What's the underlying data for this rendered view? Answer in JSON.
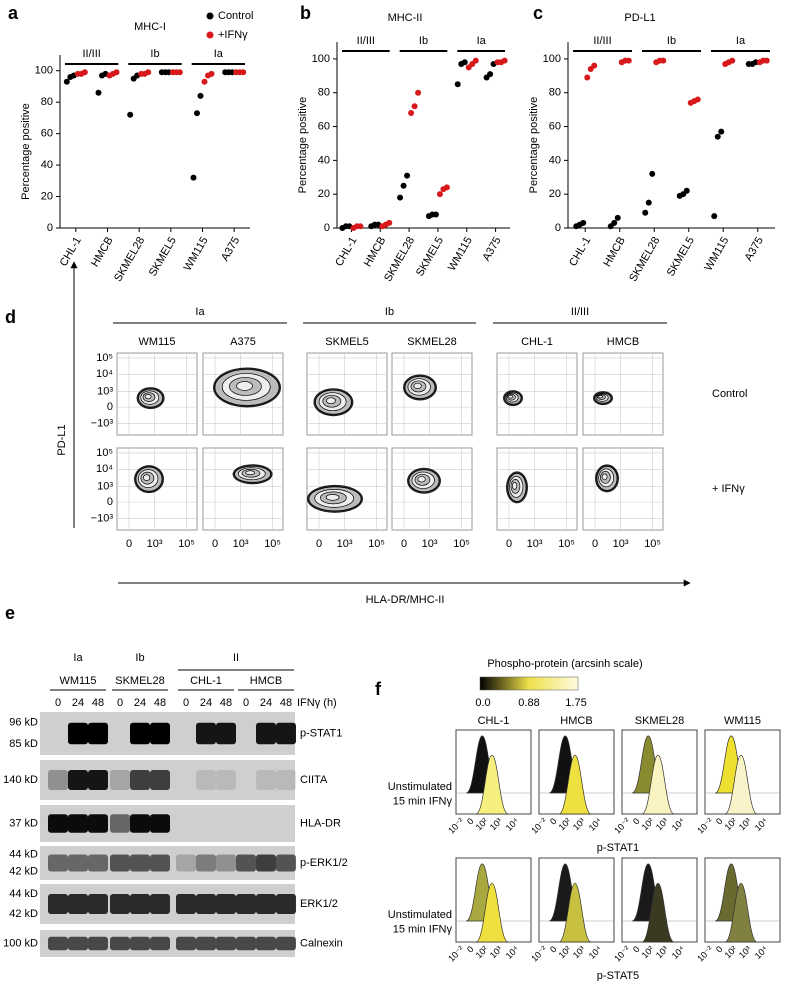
{
  "chart_data": [
    {
      "type": "dot",
      "panel": "a",
      "title": "MHC-I",
      "y_label": "Percentage positive",
      "categories": [
        "CHL-1",
        "HMCB",
        "SKMEL28",
        "SKMEL5",
        "WM115",
        "A375"
      ],
      "groups": [
        "II/III",
        "Ib",
        "Ia"
      ],
      "series": [
        {
          "name": "Control",
          "color": "#000000",
          "values": [
            [
              93,
              96,
              97
            ],
            [
              86,
              97,
              98
            ],
            [
              72,
              95,
              97
            ],
            [
              99,
              99,
              99
            ],
            [
              32,
              73,
              84
            ],
            [
              99,
              99,
              99
            ]
          ]
        },
        {
          "name": "+IFNγ",
          "color": "#d7191c",
          "values": [
            [
              98,
              98,
              99
            ],
            [
              97,
              98,
              99
            ],
            [
              98,
              98,
              99
            ],
            [
              99,
              99,
              99
            ],
            [
              93,
              97,
              98
            ],
            [
              99,
              99,
              99
            ]
          ]
        }
      ],
      "ylim": [
        0,
        110
      ],
      "yticks": [
        0,
        20,
        40,
        60,
        80,
        100
      ],
      "legend": true
    },
    {
      "type": "dot",
      "panel": "b",
      "title": "MHC-II",
      "y_label": "Percentage positive",
      "categories": [
        "CHL-1",
        "HMCB",
        "SKMEL28",
        "SKMEL5",
        "WM115",
        "A375"
      ],
      "groups": [
        "II/III",
        "Ib",
        "Ia"
      ],
      "series": [
        {
          "color": "#000000",
          "values": [
            [
              0,
              1,
              1
            ],
            [
              1,
              2,
              2
            ],
            [
              18,
              25,
              31
            ],
            [
              7,
              8,
              8
            ],
            [
              85,
              97,
              98
            ],
            [
              89,
              91,
              97
            ]
          ]
        },
        {
          "color": "#d7191c",
          "values": [
            [
              0,
              1,
              1
            ],
            [
              1,
              2,
              3
            ],
            [
              68,
              72,
              80
            ],
            [
              20,
              23,
              24
            ],
            [
              95,
              97,
              99
            ],
            [
              98,
              98,
              99
            ]
          ]
        }
      ],
      "ylim": [
        0,
        110
      ],
      "yticks": [
        0,
        20,
        40,
        60,
        80,
        100
      ],
      "legend": false
    },
    {
      "type": "dot",
      "panel": "c",
      "title": "PD-L1",
      "y_label": "Percentage positive",
      "categories": [
        "CHL-1",
        "HMCB",
        "SKMEL28",
        "SKMEL5",
        "WM115",
        "A375"
      ],
      "groups": [
        "II/III",
        "Ib",
        "Ia"
      ],
      "series": [
        {
          "color": "#000000",
          "values": [
            [
              1,
              2,
              3
            ],
            [
              1,
              3,
              6
            ],
            [
              9,
              15,
              32
            ],
            [
              19,
              20,
              22
            ],
            [
              7,
              54,
              57
            ],
            [
              97,
              97,
              98
            ]
          ]
        },
        {
          "color": "#d7191c",
          "values": [
            [
              89,
              94,
              96
            ],
            [
              98,
              99,
              99
            ],
            [
              98,
              99,
              99
            ],
            [
              74,
              75,
              76
            ],
            [
              97,
              98,
              99
            ],
            [
              98,
              99,
              99
            ]
          ]
        }
      ],
      "ylim": [
        0,
        110
      ],
      "yticks": [
        0,
        20,
        40,
        60,
        80,
        100
      ],
      "legend": false
    }
  ],
  "flow_panel": {
    "panel": "d",
    "groups": [
      {
        "label": "Ia",
        "cells": [
          "WM115",
          "A375"
        ]
      },
      {
        "label": "Ib",
        "cells": [
          "SKMEL5",
          "SKMEL28"
        ]
      },
      {
        "label": "II/III",
        "cells": [
          "CHL-1",
          "HMCB"
        ]
      }
    ],
    "rows": [
      "Control",
      "+ IFNγ"
    ],
    "y_label": "PD-L1",
    "x_label": "HLA-DR/MHC-II",
    "y_ticks": [
      "10⁵",
      "10⁴",
      "10³",
      "0",
      "−10³"
    ],
    "x_ticks": [
      "0",
      "10³",
      "10⁵"
    ]
  },
  "blot_panel": {
    "panel": "e",
    "groups": [
      {
        "label": "Ia",
        "cells": [
          "WM115"
        ]
      },
      {
        "label": "Ib",
        "cells": [
          "SKMEL28"
        ]
      },
      {
        "label": "II",
        "cells": [
          "CHL-1",
          "HMCB"
        ]
      }
    ],
    "timepoints": [
      "0",
      "24",
      "48"
    ],
    "time_label": "IFNγ (h)",
    "blots": [
      {
        "name": "p-STAT1",
        "sizes": [
          "96 kD",
          "85 kD"
        ]
      },
      {
        "name": "CIITA",
        "sizes": [
          "140 kD"
        ]
      },
      {
        "name": "HLA-DR",
        "sizes": [
          "37 kD"
        ]
      },
      {
        "name": "p-ERK1/2",
        "sizes": [
          "44 kD",
          "42 kD"
        ]
      },
      {
        "name": "ERK1/2",
        "sizes": [
          "44 kD",
          "42 kD"
        ]
      },
      {
        "name": "Calnexin",
        "sizes": [
          "100 kD"
        ]
      }
    ]
  },
  "phospho_panel": {
    "panel": "f",
    "colorbar_title": "Phospho-protein (arcsinh scale)",
    "colorbar_ticks": [
      "0.0",
      "0.88",
      "1.75"
    ],
    "cells": [
      "CHL-1",
      "HMCB",
      "SKMEL28",
      "WM115"
    ],
    "conditions": [
      "Unstimulated",
      "15 min IFNγ"
    ],
    "x_ticks": [
      "10⁻²",
      "0",
      "10²",
      "10³",
      "10⁴"
    ],
    "rows": [
      "p-STAT1",
      "p-STAT5"
    ]
  }
}
